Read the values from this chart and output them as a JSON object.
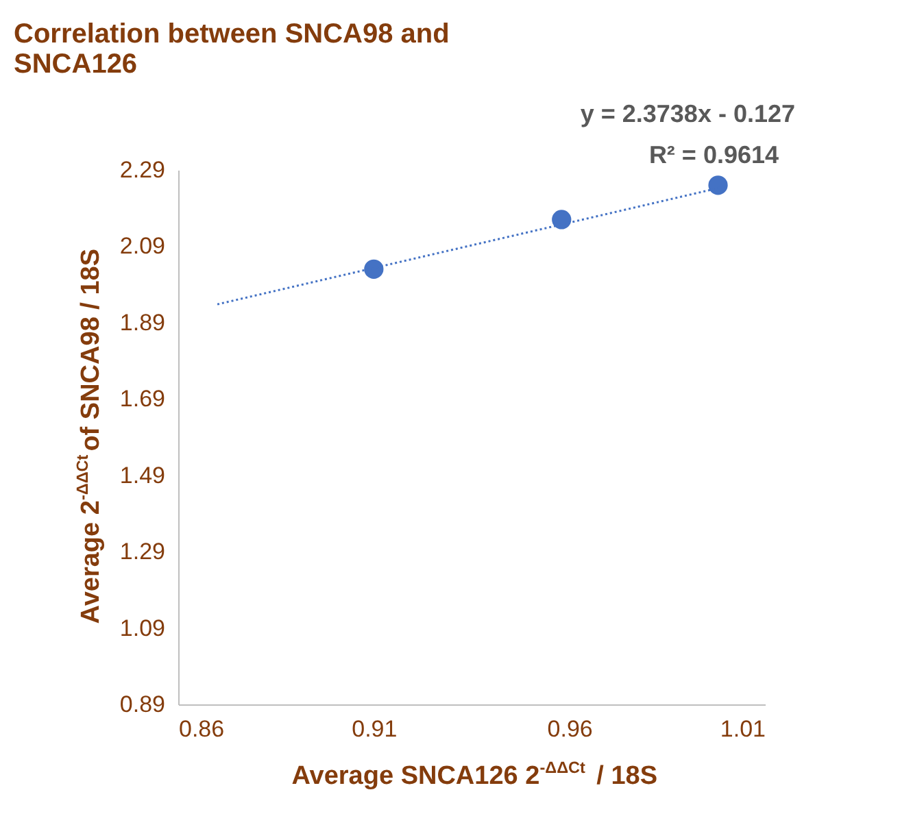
{
  "chart_data": {
    "type": "scatter",
    "title": "Correlation between SNCA98 and SNCA126",
    "xlabel": "Average SNCA126 2$^{-ΔΔCt}$ / 18S",
    "ylabel": "Average 2$^{-ΔΔCt}$of SNCA98 / 18S",
    "series": [
      {
        "color": "#4472c4",
        "x": [
          0.91,
          0.958,
          0.998
        ],
        "values": [
          2.03,
          2.16,
          2.25
        ],
        "marker": "circle"
      },
      {
        "type": "line",
        "color": "#4472c4",
        "x": [
          0.87,
          1.0
        ],
        "values": [
          1.938,
          2.247
        ],
        "marker": "none",
        "line_style": "dotted"
      }
    ],
    "annotations": [
      "y = 2.3738x - 0.127",
      "R² = 0.9614"
    ],
    "xlim": [
      0.86,
      1.01
    ],
    "xticks": [
      0.86,
      0.91,
      0.96,
      1.01
    ],
    "ylim": [
      0.89,
      2.29
    ],
    "yticks": [
      0.89,
      1.09,
      1.29,
      1.49,
      1.69,
      1.89,
      2.09,
      2.29
    ],
    "grid": false
  }
}
